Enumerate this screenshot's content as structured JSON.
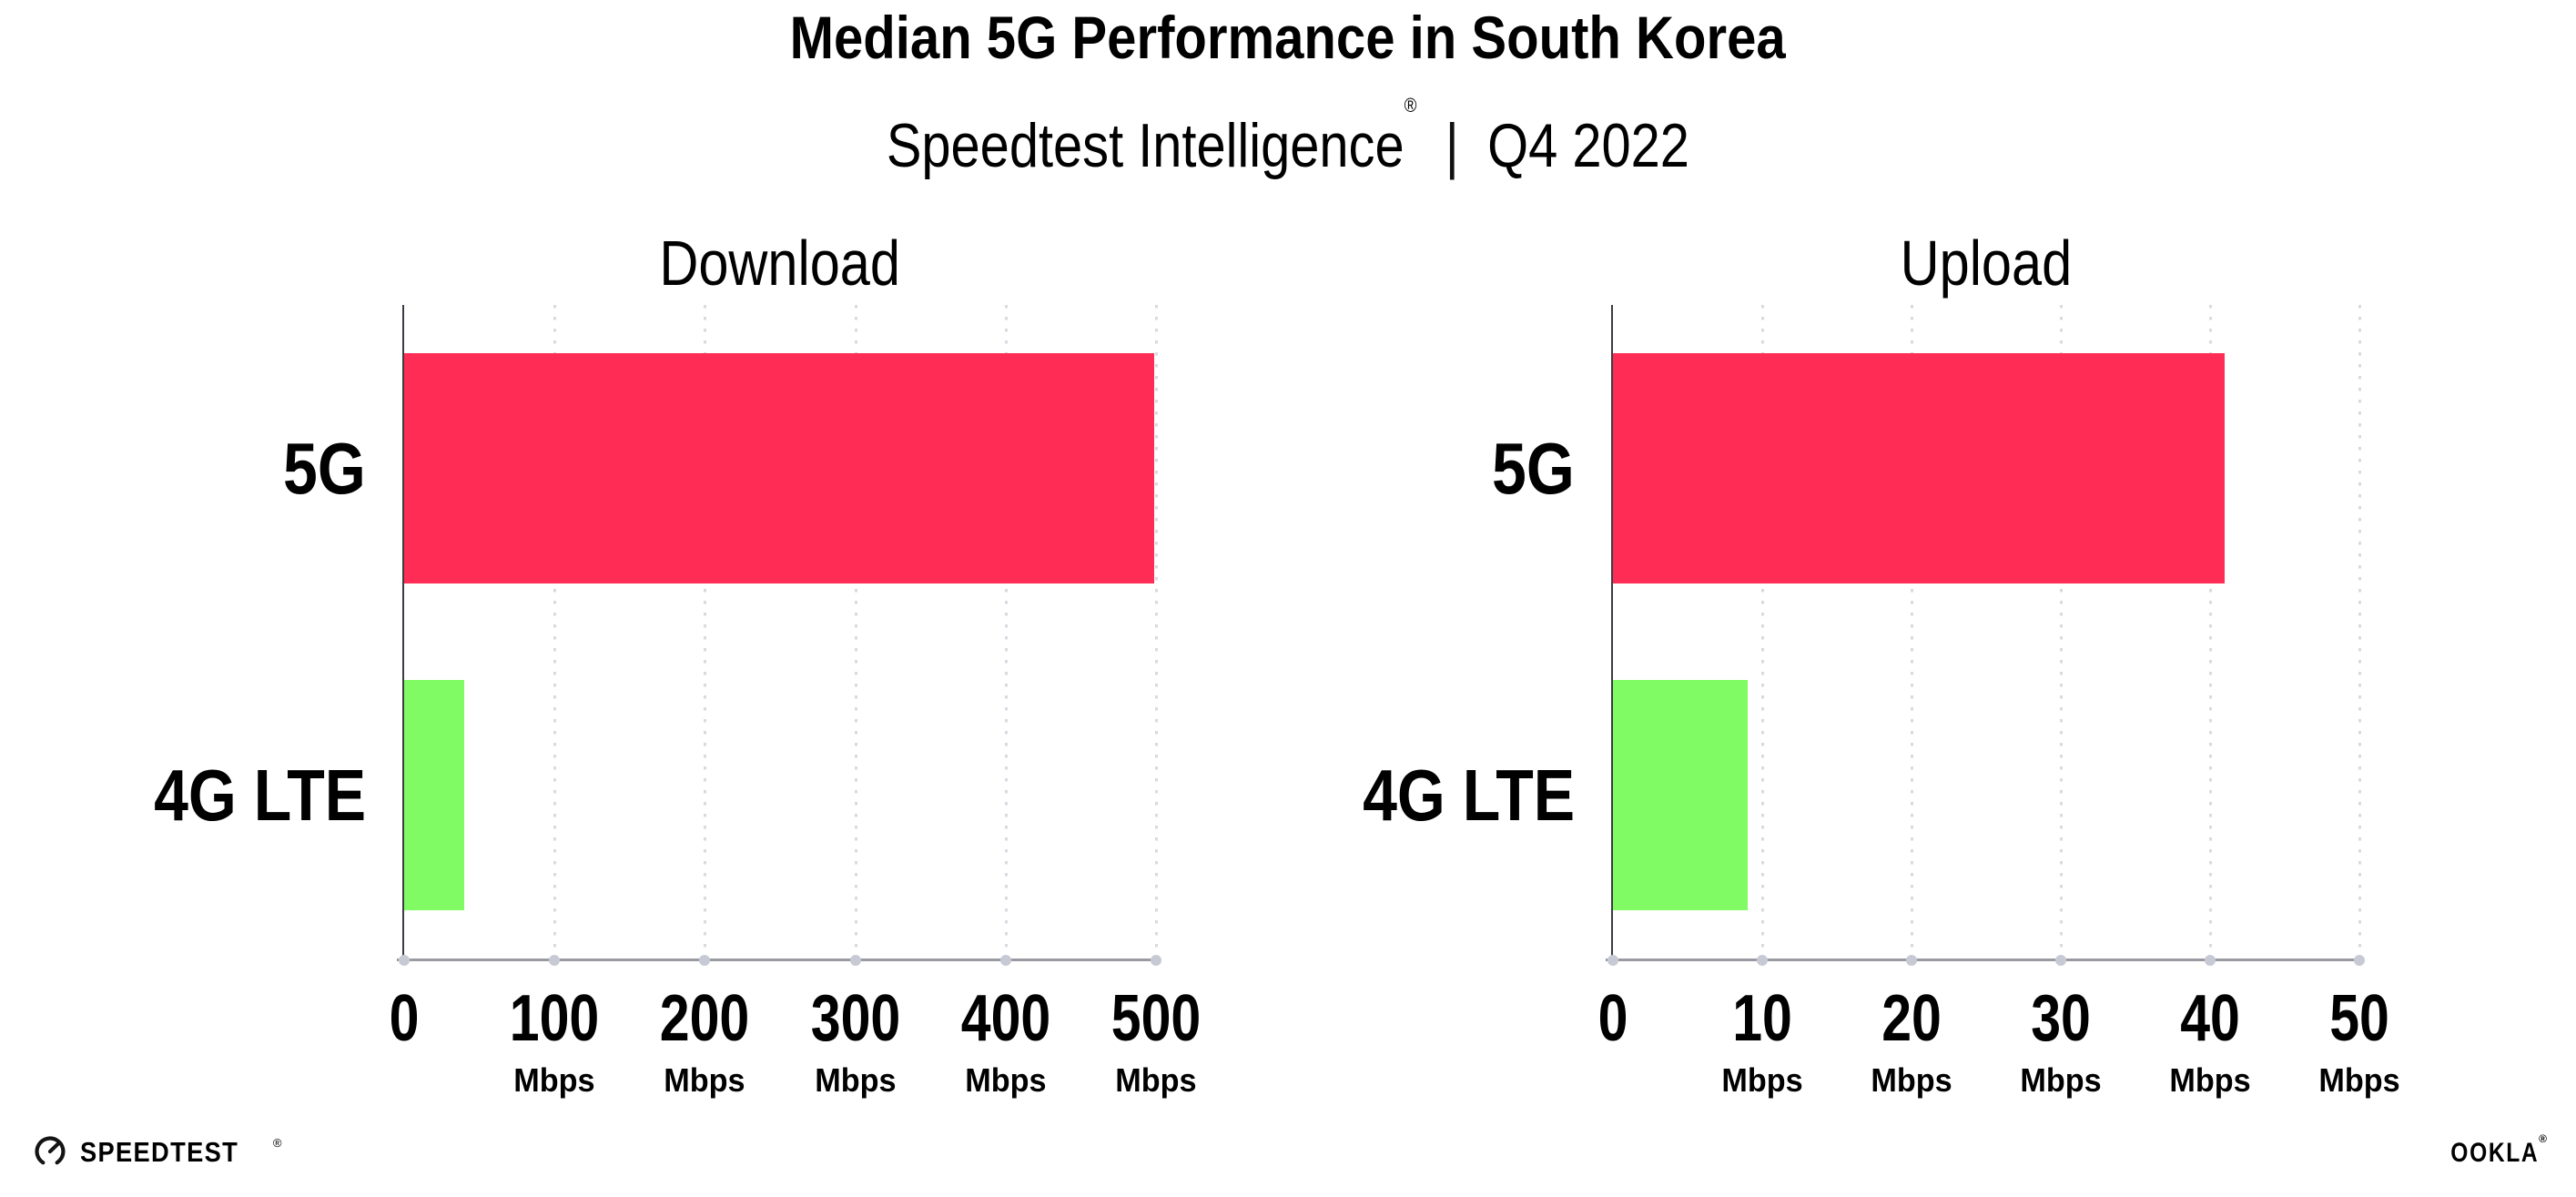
{
  "header": {
    "title": "Median 5G Performance in South Korea",
    "subtitle": {
      "brand": "Speedtest Intelligence",
      "reg_mark": "®",
      "separator": "|",
      "period": "Q4 2022"
    }
  },
  "chart_data": [
    {
      "type": "bar",
      "orientation": "horizontal",
      "title": "Download",
      "categories": [
        "5G",
        "4G LTE"
      ],
      "values": [
        499,
        40
      ],
      "unit": "Mbps",
      "xlim": [
        0,
        500
      ],
      "xticks": [
        0,
        100,
        200,
        300,
        400,
        500
      ],
      "bar_colors": [
        "#FF2D55",
        "#80FB63"
      ],
      "grid": "dotted-vertical",
      "legend": "none"
    },
    {
      "type": "bar",
      "orientation": "horizontal",
      "title": "Upload",
      "categories": [
        "5G",
        "4G LTE"
      ],
      "values": [
        41,
        9
      ],
      "unit": "Mbps",
      "xlim": [
        0,
        50
      ],
      "xticks": [
        0,
        10,
        20,
        30,
        40,
        50
      ],
      "bar_colors": [
        "#FF2D55",
        "#80FB63"
      ],
      "grid": "dotted-vertical",
      "legend": "none"
    }
  ],
  "colors": {
    "bar_5g": "#FF2D55",
    "bar_4g_lte": "#80FB63",
    "gridline": "#D9D9E2",
    "x_axis": "#9A9AA2",
    "y_axis": "#3B3B42",
    "text": "#000000",
    "background": "#FFFFFF"
  },
  "footer": {
    "speedtest": {
      "icon": "gauge-icon",
      "label": "SPEEDTEST",
      "mark": "®"
    },
    "ookla": {
      "label": "OOKLA",
      "mark": "®"
    }
  }
}
